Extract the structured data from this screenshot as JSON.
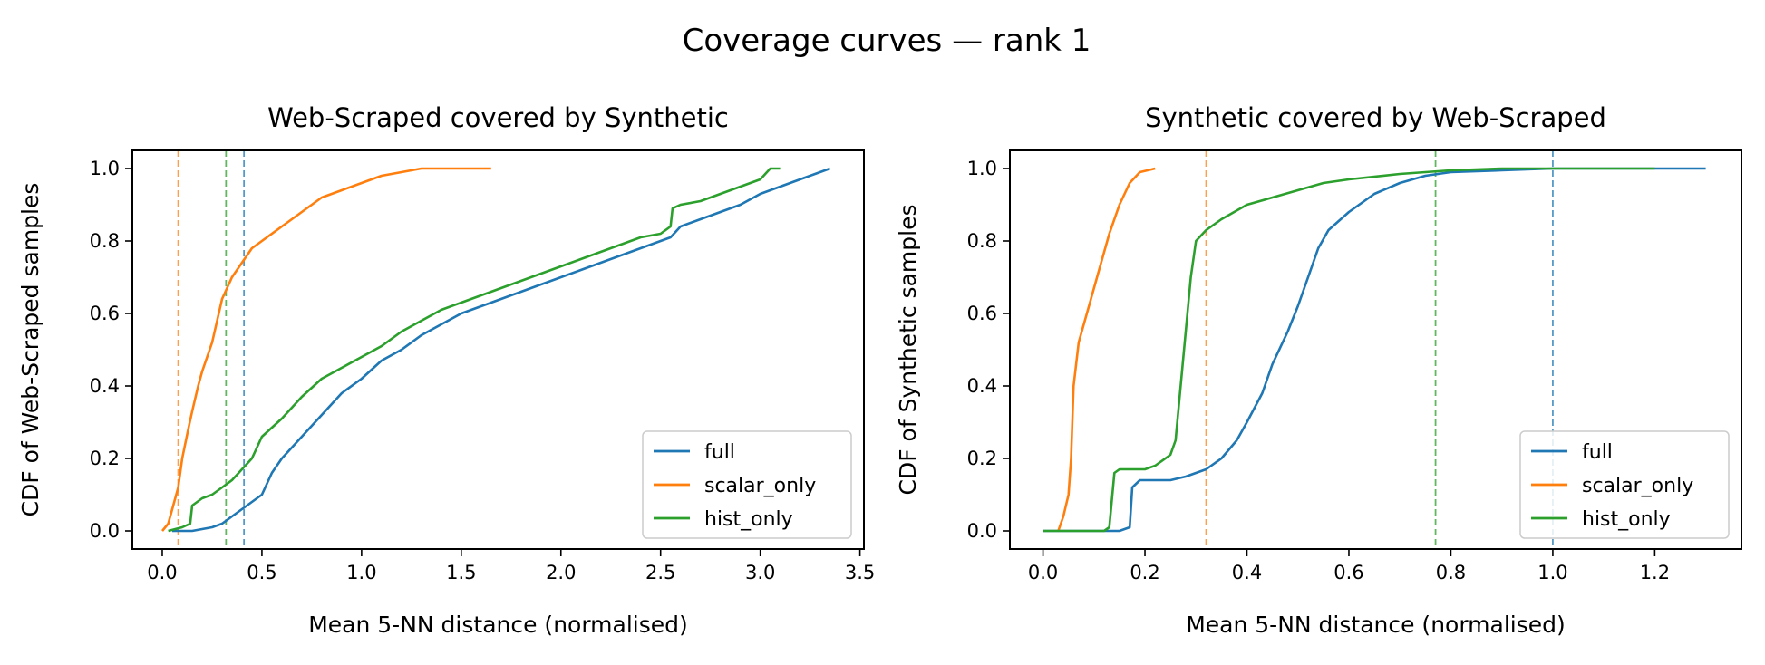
{
  "figure": {
    "title": "Coverage curves — rank 1"
  },
  "colors": {
    "full": "#1f77b4",
    "scalar_only": "#ff7f0e",
    "hist_only": "#2ca02c"
  },
  "chart_data": [
    {
      "type": "line",
      "title": "Web-Scraped covered by Synthetic",
      "xlabel": "Mean 5-NN distance (normalised)",
      "ylabel": "CDF of Web-Scraped samples",
      "xlim": [
        -0.15,
        3.52
      ],
      "ylim": [
        -0.05,
        1.05
      ],
      "xticks": [
        0.0,
        0.5,
        1.0,
        1.5,
        2.0,
        2.5,
        3.0,
        3.5
      ],
      "xtick_labels": [
        "0.0",
        "0.5",
        "1.0",
        "1.5",
        "2.0",
        "2.5",
        "3.0",
        "3.5"
      ],
      "yticks": [
        0.0,
        0.2,
        0.4,
        0.6,
        0.8,
        1.0
      ],
      "ytick_labels": [
        "0.0",
        "0.2",
        "0.4",
        "0.6",
        "0.8",
        "1.0"
      ],
      "legend_position": "lower right",
      "grid": false,
      "series": [
        {
          "name": "full",
          "color": "#1f77b4",
          "threshold": 0.41,
          "points": [
            [
              0.05,
              0.0
            ],
            [
              0.15,
              0.0
            ],
            [
              0.25,
              0.01
            ],
            [
              0.3,
              0.02
            ],
            [
              0.35,
              0.04
            ],
            [
              0.4,
              0.06
            ],
            [
              0.45,
              0.08
            ],
            [
              0.5,
              0.1
            ],
            [
              0.55,
              0.16
            ],
            [
              0.6,
              0.2
            ],
            [
              0.7,
              0.26
            ],
            [
              0.8,
              0.32
            ],
            [
              0.9,
              0.38
            ],
            [
              1.0,
              0.42
            ],
            [
              1.1,
              0.47
            ],
            [
              1.2,
              0.5
            ],
            [
              1.3,
              0.54
            ],
            [
              1.4,
              0.57
            ],
            [
              1.5,
              0.6
            ],
            [
              1.6,
              0.62
            ],
            [
              1.7,
              0.64
            ],
            [
              1.8,
              0.66
            ],
            [
              1.9,
              0.68
            ],
            [
              2.0,
              0.7
            ],
            [
              2.1,
              0.72
            ],
            [
              2.2,
              0.74
            ],
            [
              2.3,
              0.76
            ],
            [
              2.4,
              0.78
            ],
            [
              2.5,
              0.8
            ],
            [
              2.55,
              0.81
            ],
            [
              2.6,
              0.84
            ],
            [
              2.7,
              0.86
            ],
            [
              2.8,
              0.88
            ],
            [
              2.9,
              0.9
            ],
            [
              3.0,
              0.93
            ],
            [
              3.1,
              0.95
            ],
            [
              3.2,
              0.97
            ],
            [
              3.3,
              0.99
            ],
            [
              3.35,
              1.0
            ]
          ]
        },
        {
          "name": "scalar_only",
          "color": "#ff7f0e",
          "threshold": 0.08,
          "points": [
            [
              0.0,
              0.0
            ],
            [
              0.03,
              0.02
            ],
            [
              0.05,
              0.06
            ],
            [
              0.08,
              0.12
            ],
            [
              0.1,
              0.2
            ],
            [
              0.13,
              0.28
            ],
            [
              0.15,
              0.33
            ],
            [
              0.18,
              0.4
            ],
            [
              0.2,
              0.44
            ],
            [
              0.25,
              0.52
            ],
            [
              0.3,
              0.64
            ],
            [
              0.35,
              0.7
            ],
            [
              0.4,
              0.74
            ],
            [
              0.45,
              0.78
            ],
            [
              0.5,
              0.8
            ],
            [
              0.6,
              0.84
            ],
            [
              0.7,
              0.88
            ],
            [
              0.8,
              0.92
            ],
            [
              0.9,
              0.94
            ],
            [
              1.0,
              0.96
            ],
            [
              1.1,
              0.98
            ],
            [
              1.2,
              0.99
            ],
            [
              1.3,
              1.0
            ],
            [
              1.65,
              1.0
            ]
          ]
        },
        {
          "name": "hist_only",
          "color": "#2ca02c",
          "threshold": 0.32,
          "points": [
            [
              0.03,
              0.0
            ],
            [
              0.1,
              0.01
            ],
            [
              0.14,
              0.02
            ],
            [
              0.15,
              0.07
            ],
            [
              0.2,
              0.09
            ],
            [
              0.25,
              0.1
            ],
            [
              0.3,
              0.12
            ],
            [
              0.35,
              0.14
            ],
            [
              0.4,
              0.17
            ],
            [
              0.45,
              0.2
            ],
            [
              0.5,
              0.26
            ],
            [
              0.6,
              0.31
            ],
            [
              0.7,
              0.37
            ],
            [
              0.8,
              0.42
            ],
            [
              0.9,
              0.45
            ],
            [
              1.0,
              0.48
            ],
            [
              1.1,
              0.51
            ],
            [
              1.2,
              0.55
            ],
            [
              1.3,
              0.58
            ],
            [
              1.4,
              0.61
            ],
            [
              1.5,
              0.63
            ],
            [
              1.6,
              0.65
            ],
            [
              1.7,
              0.67
            ],
            [
              1.8,
              0.69
            ],
            [
              1.9,
              0.71
            ],
            [
              2.0,
              0.73
            ],
            [
              2.1,
              0.75
            ],
            [
              2.2,
              0.77
            ],
            [
              2.3,
              0.79
            ],
            [
              2.4,
              0.81
            ],
            [
              2.5,
              0.82
            ],
            [
              2.55,
              0.84
            ],
            [
              2.56,
              0.89
            ],
            [
              2.6,
              0.9
            ],
            [
              2.7,
              0.91
            ],
            [
              2.8,
              0.93
            ],
            [
              2.9,
              0.95
            ],
            [
              3.0,
              0.97
            ],
            [
              3.05,
              1.0
            ],
            [
              3.1,
              1.0
            ]
          ]
        }
      ]
    },
    {
      "type": "line",
      "title": "Synthetic covered by Web-Scraped",
      "xlabel": "Mean 5-NN distance (normalised)",
      "ylabel": "CDF of Synthetic samples",
      "xlim": [
        -0.065,
        1.37
      ],
      "ylim": [
        -0.05,
        1.05
      ],
      "xticks": [
        0.0,
        0.2,
        0.4,
        0.6,
        0.8,
        1.0,
        1.2
      ],
      "xtick_labels": [
        "0.0",
        "0.2",
        "0.4",
        "0.6",
        "0.8",
        "1.0",
        "1.2"
      ],
      "yticks": [
        0.0,
        0.2,
        0.4,
        0.6,
        0.8,
        1.0
      ],
      "ytick_labels": [
        "0.0",
        "0.2",
        "0.4",
        "0.6",
        "0.8",
        "1.0"
      ],
      "legend_position": "lower right",
      "grid": false,
      "series": [
        {
          "name": "full",
          "color": "#1f77b4",
          "threshold": 1.0,
          "points": [
            [
              0.0,
              0.0
            ],
            [
              0.15,
              0.0
            ],
            [
              0.17,
              0.01
            ],
            [
              0.175,
              0.12
            ],
            [
              0.19,
              0.14
            ],
            [
              0.25,
              0.14
            ],
            [
              0.28,
              0.15
            ],
            [
              0.32,
              0.17
            ],
            [
              0.35,
              0.2
            ],
            [
              0.38,
              0.25
            ],
            [
              0.4,
              0.3
            ],
            [
              0.43,
              0.38
            ],
            [
              0.45,
              0.46
            ],
            [
              0.48,
              0.55
            ],
            [
              0.5,
              0.62
            ],
            [
              0.52,
              0.7
            ],
            [
              0.54,
              0.78
            ],
            [
              0.56,
              0.83
            ],
            [
              0.6,
              0.88
            ],
            [
              0.65,
              0.93
            ],
            [
              0.7,
              0.96
            ],
            [
              0.75,
              0.98
            ],
            [
              0.8,
              0.99
            ],
            [
              0.9,
              0.995
            ],
            [
              1.0,
              1.0
            ],
            [
              1.3,
              1.0
            ]
          ]
        },
        {
          "name": "scalar_only",
          "color": "#ff7f0e",
          "threshold": 0.32,
          "points": [
            [
              0.03,
              0.0
            ],
            [
              0.04,
              0.04
            ],
            [
              0.05,
              0.1
            ],
            [
              0.055,
              0.2
            ],
            [
              0.06,
              0.4
            ],
            [
              0.07,
              0.52
            ],
            [
              0.09,
              0.62
            ],
            [
              0.11,
              0.72
            ],
            [
              0.13,
              0.82
            ],
            [
              0.15,
              0.9
            ],
            [
              0.17,
              0.96
            ],
            [
              0.19,
              0.99
            ],
            [
              0.22,
              1.0
            ]
          ]
        },
        {
          "name": "hist_only",
          "color": "#2ca02c",
          "threshold": 0.77,
          "points": [
            [
              0.0,
              0.0
            ],
            [
              0.12,
              0.0
            ],
            [
              0.13,
              0.01
            ],
            [
              0.14,
              0.16
            ],
            [
              0.15,
              0.17
            ],
            [
              0.2,
              0.17
            ],
            [
              0.22,
              0.18
            ],
            [
              0.25,
              0.21
            ],
            [
              0.26,
              0.25
            ],
            [
              0.27,
              0.4
            ],
            [
              0.28,
              0.55
            ],
            [
              0.29,
              0.7
            ],
            [
              0.3,
              0.8
            ],
            [
              0.32,
              0.83
            ],
            [
              0.35,
              0.86
            ],
            [
              0.4,
              0.9
            ],
            [
              0.45,
              0.92
            ],
            [
              0.5,
              0.94
            ],
            [
              0.55,
              0.96
            ],
            [
              0.6,
              0.97
            ],
            [
              0.7,
              0.985
            ],
            [
              0.8,
              0.995
            ],
            [
              0.9,
              1.0
            ],
            [
              1.2,
              1.0
            ]
          ]
        }
      ]
    }
  ]
}
